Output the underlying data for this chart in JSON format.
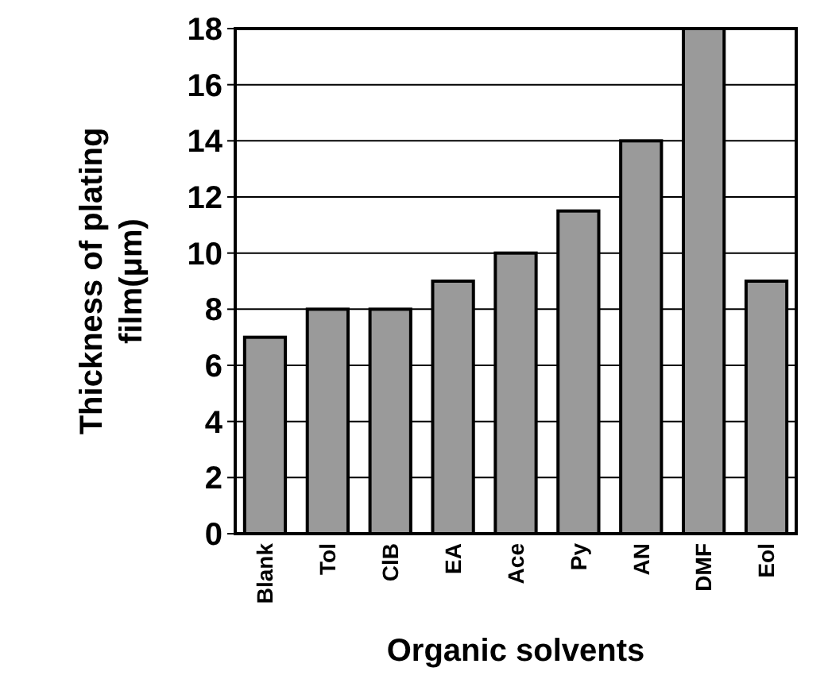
{
  "chart_data": {
    "type": "bar",
    "xlabel": "Organic solvents",
    "ylabel": "Thickness of plating film(μm)",
    "categories": [
      "Blank",
      "Tol",
      "ClB",
      "EA",
      "Ace",
      "Py",
      "AN",
      "DMF",
      "Eol"
    ],
    "values": [
      7,
      8,
      8,
      9,
      10,
      11.5,
      14,
      18,
      9
    ],
    "color": "#9a9a9a",
    "ylim": [
      0,
      18
    ],
    "yticks": [
      0,
      2,
      4,
      6,
      8,
      10,
      12,
      14,
      16,
      18
    ],
    "grid": "y"
  }
}
